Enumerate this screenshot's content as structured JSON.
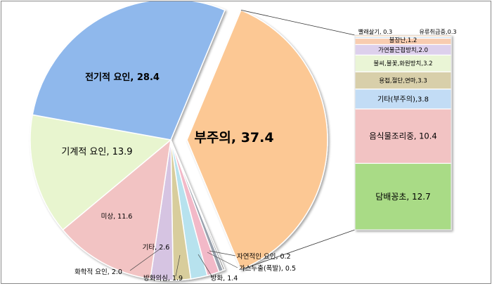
{
  "chart_data": {
    "type": "bar-of-pie",
    "title": "",
    "pie": [
      {
        "name": "부주의",
        "value": 37.4,
        "label": "부주의, 37.4",
        "color": "#fcc894",
        "exploded": true
      },
      {
        "name": "자연적인 요인",
        "value": 0.2,
        "label": "자연적인 요인, 0.2",
        "color": "#7a7a7a"
      },
      {
        "name": "가스누출(폭발)",
        "value": 0.5,
        "label": "가스누출(폭발), 0.5",
        "color": "#9aa2ae"
      },
      {
        "name": "방화",
        "value": 1.4,
        "label": "방화, 1.4",
        "color": "#f2b9c8"
      },
      {
        "name": "방화의심",
        "value": 1.9,
        "label": "방화의심, 1.9",
        "color": "#b7e2ee"
      },
      {
        "name": "화학적 요인",
        "value": 2.0,
        "label": "화학적 요인, 2.0",
        "color": "#d8cd9c"
      },
      {
        "name": "기타",
        "value": 2.6,
        "label": "기타, 2.6",
        "color": "#d6c4e2"
      },
      {
        "name": "미상",
        "value": 11.6,
        "label": "미상, 11.6",
        "color": "#f2c3c3"
      },
      {
        "name": "기계적 요인",
        "value": 13.9,
        "label": "기계적 요인, 13.9",
        "color": "#e8f5cf"
      },
      {
        "name": "전기적 요인",
        "value": 28.4,
        "label": "전기적 요인, 28.4",
        "color": "#8fb8ec"
      }
    ],
    "bar_breakdown_of": "부주의",
    "bar": [
      {
        "name": "담배꽁초",
        "value": 12.7,
        "label": "담배꽁초, 12.7",
        "color": "#a9db86"
      },
      {
        "name": "음식물조리중",
        "value": 10.4,
        "label": "음식물조리중, 10.4",
        "color": "#f2c3c3"
      },
      {
        "name": "기타(부주의)",
        "value": 3.8,
        "label": "기타(부주의),3.8",
        "color": "#c2dcf5"
      },
      {
        "name": "용접,절단,연마",
        "value": 3.3,
        "label": "용접,절단,연마,3.3",
        "color": "#d8cfaa"
      },
      {
        "name": "불씨,불꽃,화원방치",
        "value": 3.2,
        "label": "불씨,불꽃,화원방치,3.2",
        "color": "#eaf5d6"
      },
      {
        "name": "가연물근접방치",
        "value": 2.0,
        "label": "가연물근접방치,2.0",
        "color": "#ddd0ec"
      },
      {
        "name": "불장난",
        "value": 1.2,
        "label": "불장난,1.2",
        "color": "#f8ccb0"
      },
      {
        "name": "유류취급중",
        "value": 0.3,
        "label": "유류취급중,0.3",
        "color": "#c8ddf0"
      },
      {
        "name": "빨래삶기",
        "value": 0.3,
        "label": "빨래삶기, 0.3",
        "color": "#f6d7b8"
      }
    ]
  }
}
